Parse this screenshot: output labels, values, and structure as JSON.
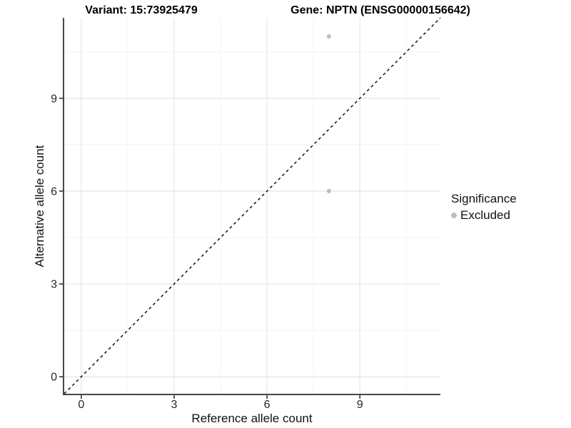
{
  "chart_data": {
    "type": "scatter",
    "title_left": "Variant: 15:73925479",
    "title_right": "Gene: NPTN (ENSG00000156642)",
    "xlabel": "Reference allele count",
    "ylabel": "Alternative allele count",
    "xlim": [
      -0.55,
      11.6
    ],
    "ylim": [
      -0.55,
      11.6
    ],
    "x_major_ticks": [
      0,
      3,
      6,
      9
    ],
    "y_major_ticks": [
      0,
      3,
      6,
      9
    ],
    "x_minor_gridlines": [
      1.5,
      4.5,
      7.5,
      10.5
    ],
    "y_minor_gridlines": [
      1.5,
      4.5,
      7.5,
      10.5
    ],
    "grid": "on",
    "reference_line": {
      "kind": "identity y=x",
      "style": "dashed",
      "color": "#000000"
    },
    "series": [
      {
        "name": "Excluded",
        "color": "#bdbdbd",
        "points": [
          {
            "x": 8,
            "y": 11
          },
          {
            "x": 8,
            "y": 6
          }
        ]
      }
    ],
    "legend": {
      "title": "Significance",
      "position": "right",
      "entries": [
        {
          "label": "Excluded",
          "color": "#bdbdbd"
        }
      ]
    },
    "style_colors": {
      "grid_major": "#e3e3e3",
      "grid_minor": "#f1f1f1",
      "axis_line": "#474747",
      "tick_mark": "#333333",
      "tick_label": "#262626"
    }
  }
}
